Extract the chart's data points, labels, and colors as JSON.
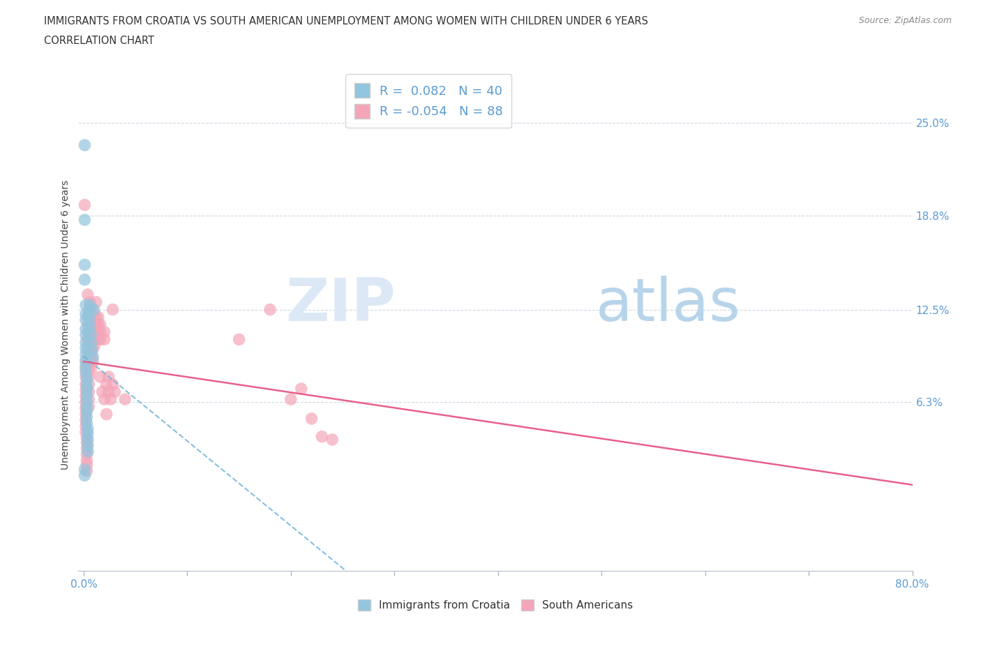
{
  "title_line1": "IMMIGRANTS FROM CROATIA VS SOUTH AMERICAN UNEMPLOYMENT AMONG WOMEN WITH CHILDREN UNDER 6 YEARS",
  "title_line2": "CORRELATION CHART",
  "source": "Source: ZipAtlas.com",
  "ylabel": "Unemployment Among Women with Children Under 6 years",
  "legend_label1": "Immigrants from Croatia",
  "legend_label2": "South Americans",
  "R1": 0.082,
  "N1": 40,
  "R2": -0.054,
  "N2": 88,
  "xlim": [
    -0.005,
    0.8
  ],
  "ylim": [
    -0.05,
    0.28
  ],
  "right_yticks": [
    0.063,
    0.125,
    0.188,
    0.25
  ],
  "right_yticklabels": [
    "6.3%",
    "12.5%",
    "18.8%",
    "25.0%"
  ],
  "xtick_positions": [
    0.0,
    0.1,
    0.2,
    0.3,
    0.4,
    0.5,
    0.6,
    0.7,
    0.8
  ],
  "color_blue": "#92c5de",
  "color_pink": "#f4a6b8",
  "color_blue_line": "#6baed6",
  "color_pink_line": "#e8608a",
  "background_color": "#ffffff",
  "watermark_zip": "ZIP",
  "watermark_atlas": "atlas",
  "blue_dots": [
    [
      0.001,
      0.235
    ],
    [
      0.001,
      0.185
    ],
    [
      0.001,
      0.155
    ],
    [
      0.001,
      0.145
    ],
    [
      0.002,
      0.128
    ],
    [
      0.002,
      0.122
    ],
    [
      0.002,
      0.118
    ],
    [
      0.002,
      0.112
    ],
    [
      0.002,
      0.108
    ],
    [
      0.002,
      0.103
    ],
    [
      0.002,
      0.099
    ],
    [
      0.002,
      0.095
    ],
    [
      0.002,
      0.091
    ],
    [
      0.002,
      0.087
    ],
    [
      0.002,
      0.083
    ],
    [
      0.003,
      0.079
    ],
    [
      0.003,
      0.075
    ],
    [
      0.003,
      0.072
    ],
    [
      0.003,
      0.068
    ],
    [
      0.003,
      0.064
    ],
    [
      0.003,
      0.06
    ],
    [
      0.003,
      0.057
    ],
    [
      0.003,
      0.053
    ],
    [
      0.003,
      0.049
    ],
    [
      0.004,
      0.045
    ],
    [
      0.004,
      0.042
    ],
    [
      0.004,
      0.038
    ],
    [
      0.004,
      0.034
    ],
    [
      0.004,
      0.03
    ],
    [
      0.005,
      0.123
    ],
    [
      0.006,
      0.128
    ],
    [
      0.006,
      0.118
    ],
    [
      0.006,
      0.113
    ],
    [
      0.007,
      0.108
    ],
    [
      0.007,
      0.103
    ],
    [
      0.008,
      0.098
    ],
    [
      0.009,
      0.093
    ],
    [
      0.01,
      0.125
    ],
    [
      0.001,
      0.018
    ],
    [
      0.001,
      0.014
    ]
  ],
  "pink_dots": [
    [
      0.001,
      0.195
    ],
    [
      0.002,
      0.09
    ],
    [
      0.002,
      0.085
    ],
    [
      0.002,
      0.08
    ],
    [
      0.002,
      0.075
    ],
    [
      0.002,
      0.071
    ],
    [
      0.002,
      0.067
    ],
    [
      0.002,
      0.063
    ],
    [
      0.002,
      0.059
    ],
    [
      0.002,
      0.055
    ],
    [
      0.002,
      0.051
    ],
    [
      0.002,
      0.047
    ],
    [
      0.002,
      0.043
    ],
    [
      0.003,
      0.039
    ],
    [
      0.003,
      0.036
    ],
    [
      0.003,
      0.032
    ],
    [
      0.003,
      0.028
    ],
    [
      0.003,
      0.024
    ],
    [
      0.003,
      0.021
    ],
    [
      0.003,
      0.017
    ],
    [
      0.004,
      0.135
    ],
    [
      0.004,
      0.12
    ],
    [
      0.004,
      0.115
    ],
    [
      0.004,
      0.11
    ],
    [
      0.004,
      0.105
    ],
    [
      0.004,
      0.1
    ],
    [
      0.004,
      0.095
    ],
    [
      0.004,
      0.09
    ],
    [
      0.005,
      0.085
    ],
    [
      0.005,
      0.08
    ],
    [
      0.005,
      0.075
    ],
    [
      0.005,
      0.07
    ],
    [
      0.005,
      0.065
    ],
    [
      0.005,
      0.06
    ],
    [
      0.006,
      0.13
    ],
    [
      0.006,
      0.125
    ],
    [
      0.006,
      0.12
    ],
    [
      0.006,
      0.115
    ],
    [
      0.006,
      0.11
    ],
    [
      0.006,
      0.105
    ],
    [
      0.006,
      0.1
    ],
    [
      0.006,
      0.095
    ],
    [
      0.007,
      0.09
    ],
    [
      0.007,
      0.085
    ],
    [
      0.008,
      0.125
    ],
    [
      0.008,
      0.115
    ],
    [
      0.008,
      0.11
    ],
    [
      0.008,
      0.105
    ],
    [
      0.008,
      0.1
    ],
    [
      0.008,
      0.095
    ],
    [
      0.009,
      0.09
    ],
    [
      0.01,
      0.12
    ],
    [
      0.01,
      0.115
    ],
    [
      0.01,
      0.11
    ],
    [
      0.01,
      0.105
    ],
    [
      0.01,
      0.1
    ],
    [
      0.012,
      0.13
    ],
    [
      0.012,
      0.12
    ],
    [
      0.012,
      0.115
    ],
    [
      0.012,
      0.11
    ],
    [
      0.014,
      0.12
    ],
    [
      0.014,
      0.115
    ],
    [
      0.014,
      0.11
    ],
    [
      0.014,
      0.105
    ],
    [
      0.016,
      0.115
    ],
    [
      0.016,
      0.11
    ],
    [
      0.016,
      0.105
    ],
    [
      0.016,
      0.08
    ],
    [
      0.018,
      0.07
    ],
    [
      0.02,
      0.065
    ],
    [
      0.02,
      0.11
    ],
    [
      0.02,
      0.105
    ],
    [
      0.022,
      0.075
    ],
    [
      0.022,
      0.055
    ],
    [
      0.024,
      0.08
    ],
    [
      0.024,
      0.07
    ],
    [
      0.026,
      0.065
    ],
    [
      0.028,
      0.075
    ],
    [
      0.028,
      0.125
    ],
    [
      0.03,
      0.07
    ],
    [
      0.04,
      0.065
    ],
    [
      0.15,
      0.105
    ],
    [
      0.18,
      0.125
    ],
    [
      0.2,
      0.065
    ],
    [
      0.21,
      0.072
    ],
    [
      0.22,
      0.052
    ],
    [
      0.23,
      0.04
    ],
    [
      0.24,
      0.038
    ]
  ]
}
